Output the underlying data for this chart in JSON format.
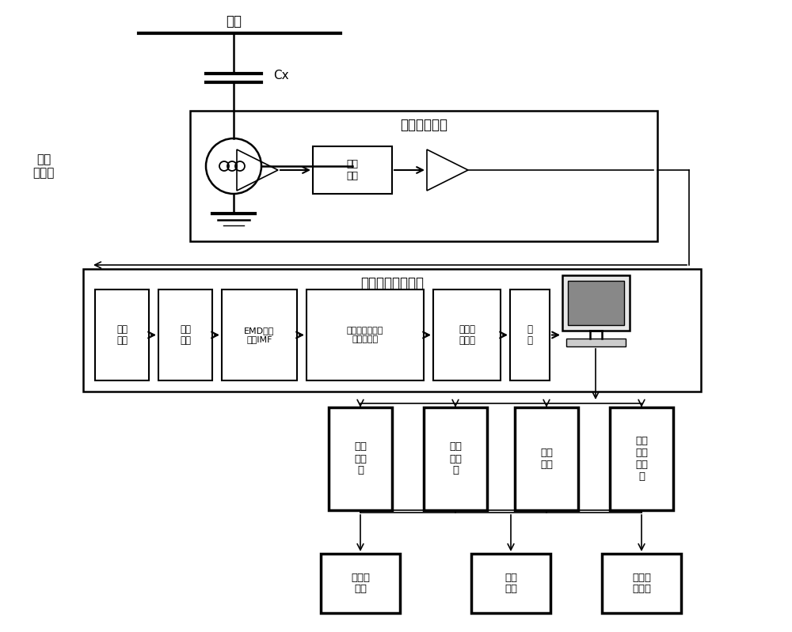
{
  "bg_color": "#ffffff",
  "fig_width": 10.0,
  "fig_height": 7.99,
  "lw_thin": 1.2,
  "lw_med": 1.8,
  "lw_thick": 2.5,
  "lw_bold": 3.0,
  "labels": {
    "bus": "母线",
    "cx": "Cx",
    "current_transformer": "电流\n互感器",
    "signal_unit": "信号调理单元",
    "bandpass": "带通\n滤波",
    "data_unit": "数据采集处理单元",
    "mod_conv": "模数\n转换",
    "data_sample": "数据\n采样",
    "emd": "EMD分解\n筛选IMF",
    "math_filter": "数学形态学交替\n混合滤波器",
    "threshold": "阈値量\n化处理",
    "reconstruct": "重\n构",
    "max_discharge": "最大\n放电\n量",
    "avg_discharge": "平均\n放电\n量",
    "discharge_count": "放电\n次数",
    "discharge_amp": "放电\n幅値\n和相\n位",
    "db_file": "数据库\n文件",
    "fault_diag": "故障\n诊断",
    "data_query": "数据查\n询显示"
  }
}
